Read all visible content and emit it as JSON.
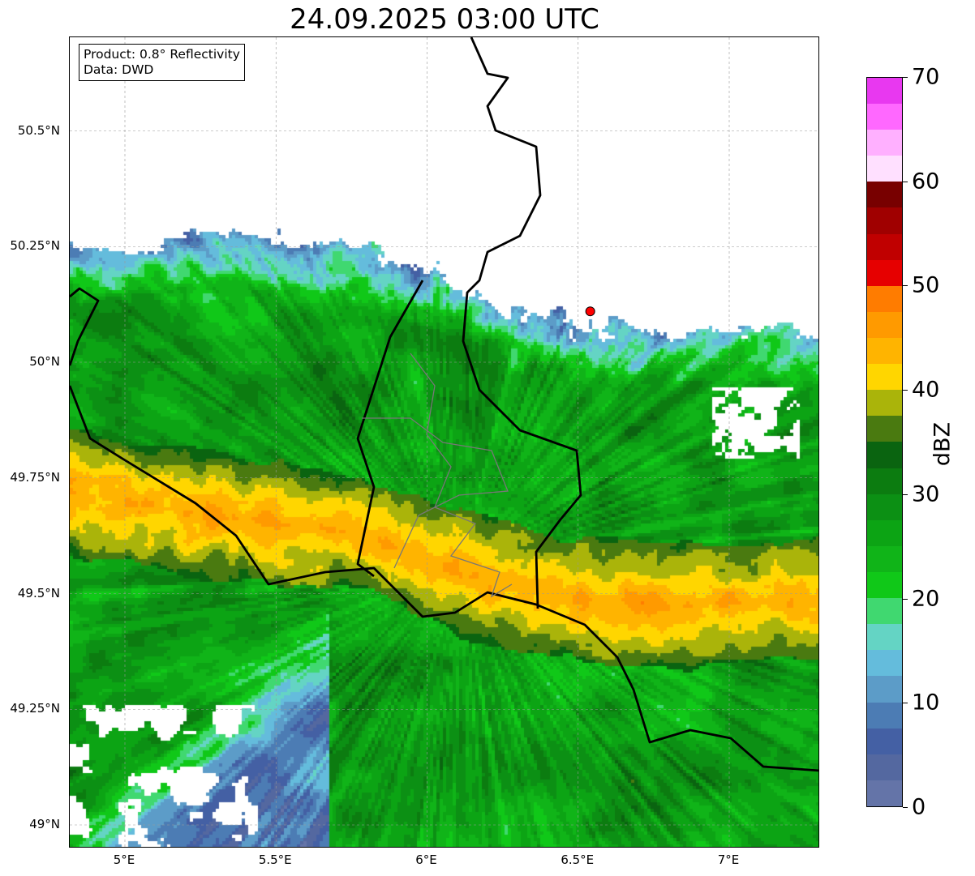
{
  "title": "24.09.2025 03:00 UTC",
  "info_box": {
    "product": "Product: 0.8° Reflectivity",
    "data": "Data: DWD"
  },
  "axes": {
    "lat_ticks": [
      {
        "value": 50.5,
        "label": "50.5°N"
      },
      {
        "value": 50.25,
        "label": "50.25°N"
      },
      {
        "value": 50.0,
        "label": "50°N"
      },
      {
        "value": 49.75,
        "label": "49.75°N"
      },
      {
        "value": 49.5,
        "label": "49.5°N"
      },
      {
        "value": 49.25,
        "label": "49.25°N"
      },
      {
        "value": 49.0,
        "label": "49°N"
      }
    ],
    "lon_ticks": [
      {
        "value": 5.0,
        "label": "5°E"
      },
      {
        "value": 5.5,
        "label": "5.5°E"
      },
      {
        "value": 6.0,
        "label": "6°E"
      },
      {
        "value": 6.5,
        "label": "6.5°E"
      },
      {
        "value": 7.0,
        "label": "7°E"
      }
    ],
    "lon_range": [
      4.82,
      7.3
    ],
    "lat_range": [
      48.95,
      50.7
    ]
  },
  "colorbar": {
    "label": "dBZ",
    "min": 0,
    "max": 70,
    "step": 2.5,
    "tick_labels": [
      "0",
      "10",
      "20",
      "30",
      "40",
      "50",
      "60",
      "70"
    ],
    "colors": [
      "#6474a8",
      "#5468a0",
      "#4460a4",
      "#4c7cb4",
      "#5c9cc8",
      "#64bcdc",
      "#64d4c4",
      "#40d870",
      "#10c818",
      "#10b418",
      "#0ca414",
      "#0c9014",
      "#0c7c10",
      "#0a6410",
      "#4a7a10",
      "#aab40a",
      "#ffd600",
      "#ffb400",
      "#ff9a00",
      "#ff7c00",
      "#e60000",
      "#c00000",
      "#a00000",
      "#780000",
      "#ffe0ff",
      "#ffb0ff",
      "#ff68ff",
      "#e838f0"
    ]
  },
  "marker": {
    "lon": 6.54,
    "lat": 50.11,
    "color": "#ff0000"
  }
}
